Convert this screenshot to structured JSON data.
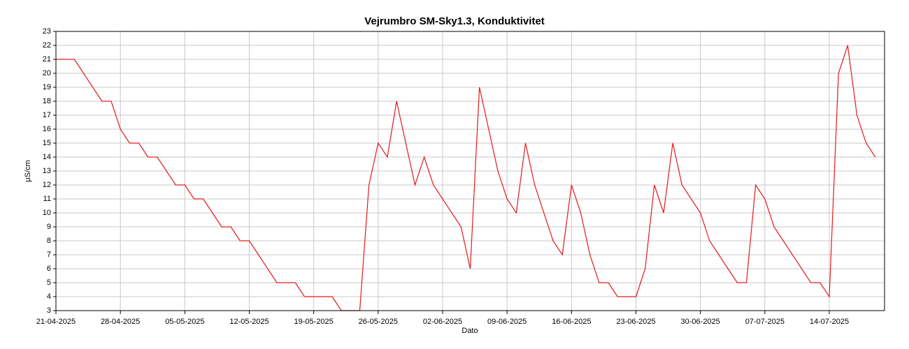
{
  "chart_data": {
    "type": "line",
    "title": "Vejrumbro SM-Sky1.3, Konduktivitet",
    "xlabel": "Dato",
    "ylabel": "µS/cm",
    "color": "#e41a1c",
    "grid": true,
    "x": [
      "2025-04-21",
      "2025-04-22",
      "2025-04-23",
      "2025-04-24",
      "2025-04-25",
      "2025-04-26",
      "2025-04-27",
      "2025-04-28",
      "2025-04-29",
      "2025-04-30",
      "2025-05-01",
      "2025-05-02",
      "2025-05-03",
      "2025-05-04",
      "2025-05-05",
      "2025-05-06",
      "2025-05-07",
      "2025-05-08",
      "2025-05-09",
      "2025-05-10",
      "2025-05-11",
      "2025-05-12",
      "2025-05-13",
      "2025-05-14",
      "2025-05-15",
      "2025-05-16",
      "2025-05-17",
      "2025-05-18",
      "2025-05-19",
      "2025-05-20",
      "2025-05-21",
      "2025-05-22",
      "2025-05-23",
      "2025-05-24",
      "2025-05-25",
      "2025-05-26",
      "2025-05-27",
      "2025-05-28",
      "2025-05-29",
      "2025-05-30",
      "2025-05-31",
      "2025-06-01",
      "2025-06-02",
      "2025-06-03",
      "2025-06-04",
      "2025-06-05",
      "2025-06-06",
      "2025-06-07",
      "2025-06-08",
      "2025-06-09",
      "2025-06-10",
      "2025-06-11",
      "2025-06-12",
      "2025-06-13",
      "2025-06-14",
      "2025-06-15",
      "2025-06-16",
      "2025-06-17",
      "2025-06-18",
      "2025-06-19",
      "2025-06-20",
      "2025-06-21",
      "2025-06-22",
      "2025-06-23",
      "2025-06-24",
      "2025-06-25",
      "2025-06-26",
      "2025-06-27",
      "2025-06-28",
      "2025-06-29",
      "2025-06-30",
      "2025-07-01",
      "2025-07-02",
      "2025-07-03",
      "2025-07-04",
      "2025-07-05",
      "2025-07-06",
      "2025-07-07",
      "2025-07-08",
      "2025-07-09",
      "2025-07-10",
      "2025-07-11",
      "2025-07-12",
      "2025-07-13",
      "2025-07-14",
      "2025-07-15",
      "2025-07-16",
      "2025-07-17",
      "2025-07-18",
      "2025-07-19"
    ],
    "values": [
      21,
      21,
      21,
      20,
      19,
      18,
      18,
      16,
      15,
      15,
      14,
      14,
      13,
      12,
      12,
      11,
      11,
      10,
      9,
      9,
      8,
      8,
      7,
      6,
      5,
      5,
      5,
      4,
      4,
      4,
      4,
      3,
      3,
      3,
      12,
      15,
      14,
      18,
      15,
      12,
      14,
      12,
      11,
      10,
      9,
      6,
      19,
      16,
      13,
      11,
      10,
      15,
      12,
      10,
      8,
      7,
      12,
      10,
      7,
      5,
      5,
      4,
      4,
      4,
      6,
      12,
      10,
      15,
      12,
      11,
      10,
      8,
      7,
      6,
      5,
      5,
      12,
      11,
      9,
      8,
      7,
      6,
      5,
      5,
      4,
      20,
      22,
      17,
      15,
      14
    ],
    "xlim": [
      "2025-04-21",
      "2025-07-20"
    ],
    "xticks": [
      {
        "value": "2025-04-21",
        "label": "21-04-2025"
      },
      {
        "value": "2025-04-28",
        "label": "28-04-2025"
      },
      {
        "value": "2025-05-05",
        "label": "05-05-2025"
      },
      {
        "value": "2025-05-12",
        "label": "12-05-2025"
      },
      {
        "value": "2025-05-19",
        "label": "19-05-2025"
      },
      {
        "value": "2025-05-26",
        "label": "26-05-2025"
      },
      {
        "value": "2025-06-02",
        "label": "02-06-2025"
      },
      {
        "value": "2025-06-09",
        "label": "09-06-2025"
      },
      {
        "value": "2025-06-16",
        "label": "16-06-2025"
      },
      {
        "value": "2025-06-23",
        "label": "23-06-2025"
      },
      {
        "value": "2025-06-30",
        "label": "30-06-2025"
      },
      {
        "value": "2025-07-07",
        "label": "07-07-2025"
      },
      {
        "value": "2025-07-14",
        "label": "14-07-2025"
      }
    ],
    "ylim": [
      3,
      23
    ],
    "yticks": [
      3,
      4,
      5,
      6,
      7,
      8,
      9,
      10,
      11,
      12,
      13,
      14,
      15,
      16,
      17,
      18,
      19,
      20,
      21,
      22,
      23
    ]
  }
}
